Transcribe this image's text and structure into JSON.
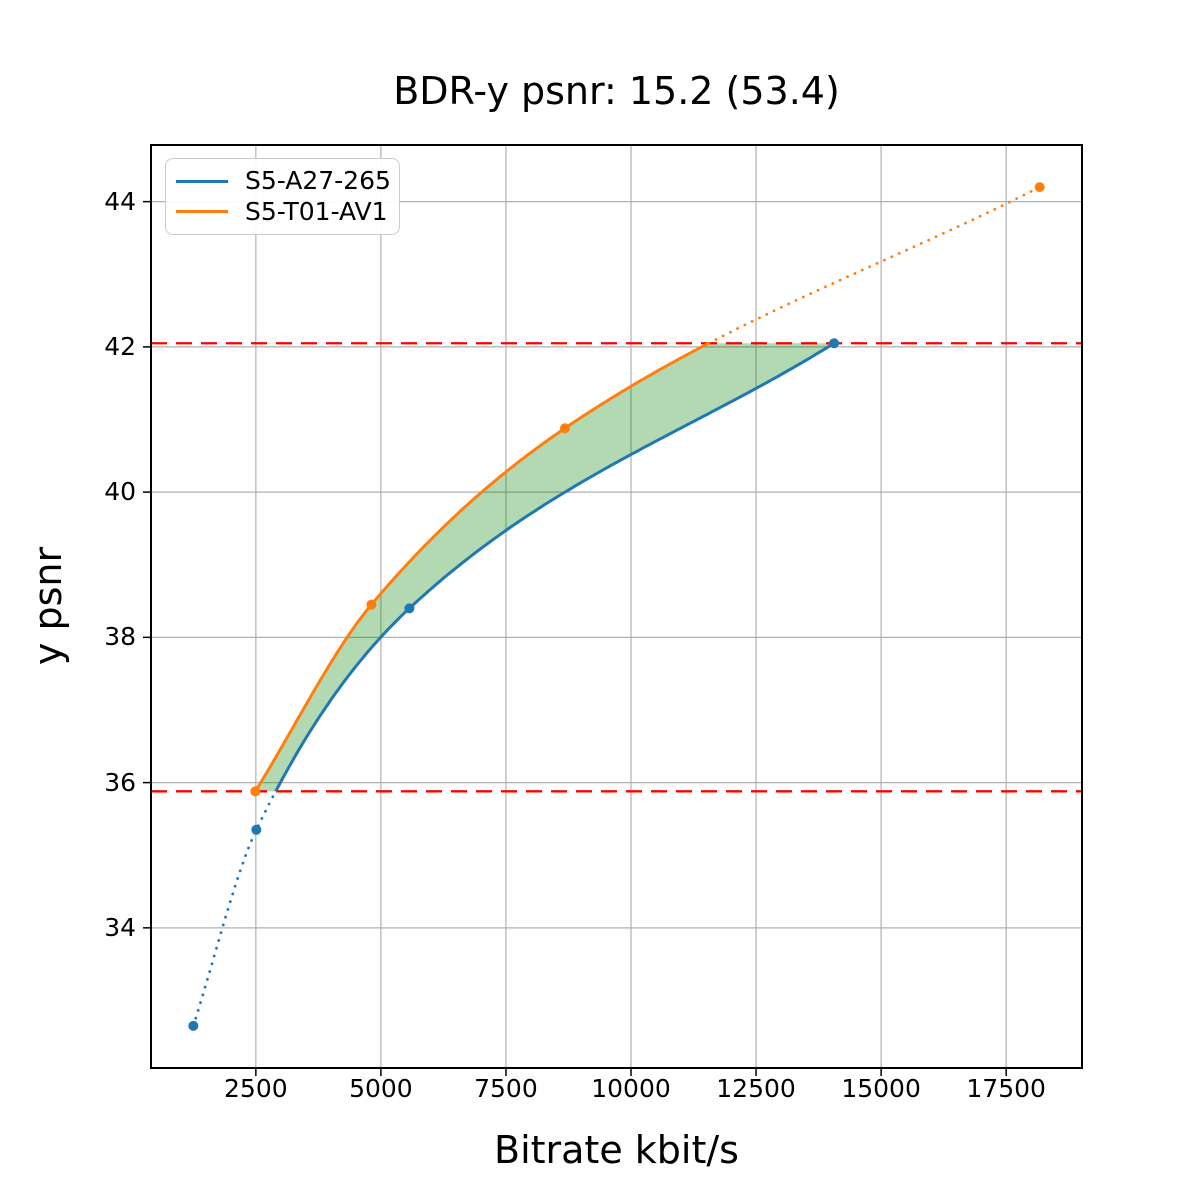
{
  "chart_data": {
    "type": "line",
    "title": "BDR-y psnr: 15.2 (53.4)",
    "xlabel": "Bitrate kbit/s",
    "ylabel": "y psnr",
    "x_ticks": [
      "2500",
      "5000",
      "7500",
      "10000",
      "12500",
      "15000",
      "17500"
    ],
    "x_tick_values": [
      2500,
      5000,
      7500,
      10000,
      12500,
      15000,
      17500
    ],
    "y_ticks": [
      "34",
      "36",
      "38",
      "40",
      "42",
      "44"
    ],
    "y_tick_values": [
      34,
      36,
      38,
      40,
      42,
      44
    ],
    "xlim": [
      404,
      19016
    ],
    "ylim": [
      32.07,
      44.78
    ],
    "grid": true,
    "grid_color": "#b0b0b0",
    "legend_position": "upper left",
    "series": [
      {
        "name": "S5-A27-265",
        "color": "#1f77b4",
        "x": [
          1250,
          2510,
          5570,
          14060
        ],
        "y": [
          32.65,
          35.35,
          38.4,
          42.05
        ]
      },
      {
        "name": "S5-T01-AV1",
        "color": "#ff7f0e",
        "x": [
          2490,
          4810,
          8680,
          18170
        ],
        "y": [
          35.88,
          38.45,
          40.88,
          44.2
        ]
      }
    ],
    "overlap_range": {
      "low": 35.88,
      "high": 42.05
    },
    "hlines": {
      "values": [
        35.88,
        42.05
      ],
      "color": "#ff0000",
      "style": "dashed"
    },
    "fill_between": {
      "color": "#008000",
      "alpha": 0.3
    }
  }
}
